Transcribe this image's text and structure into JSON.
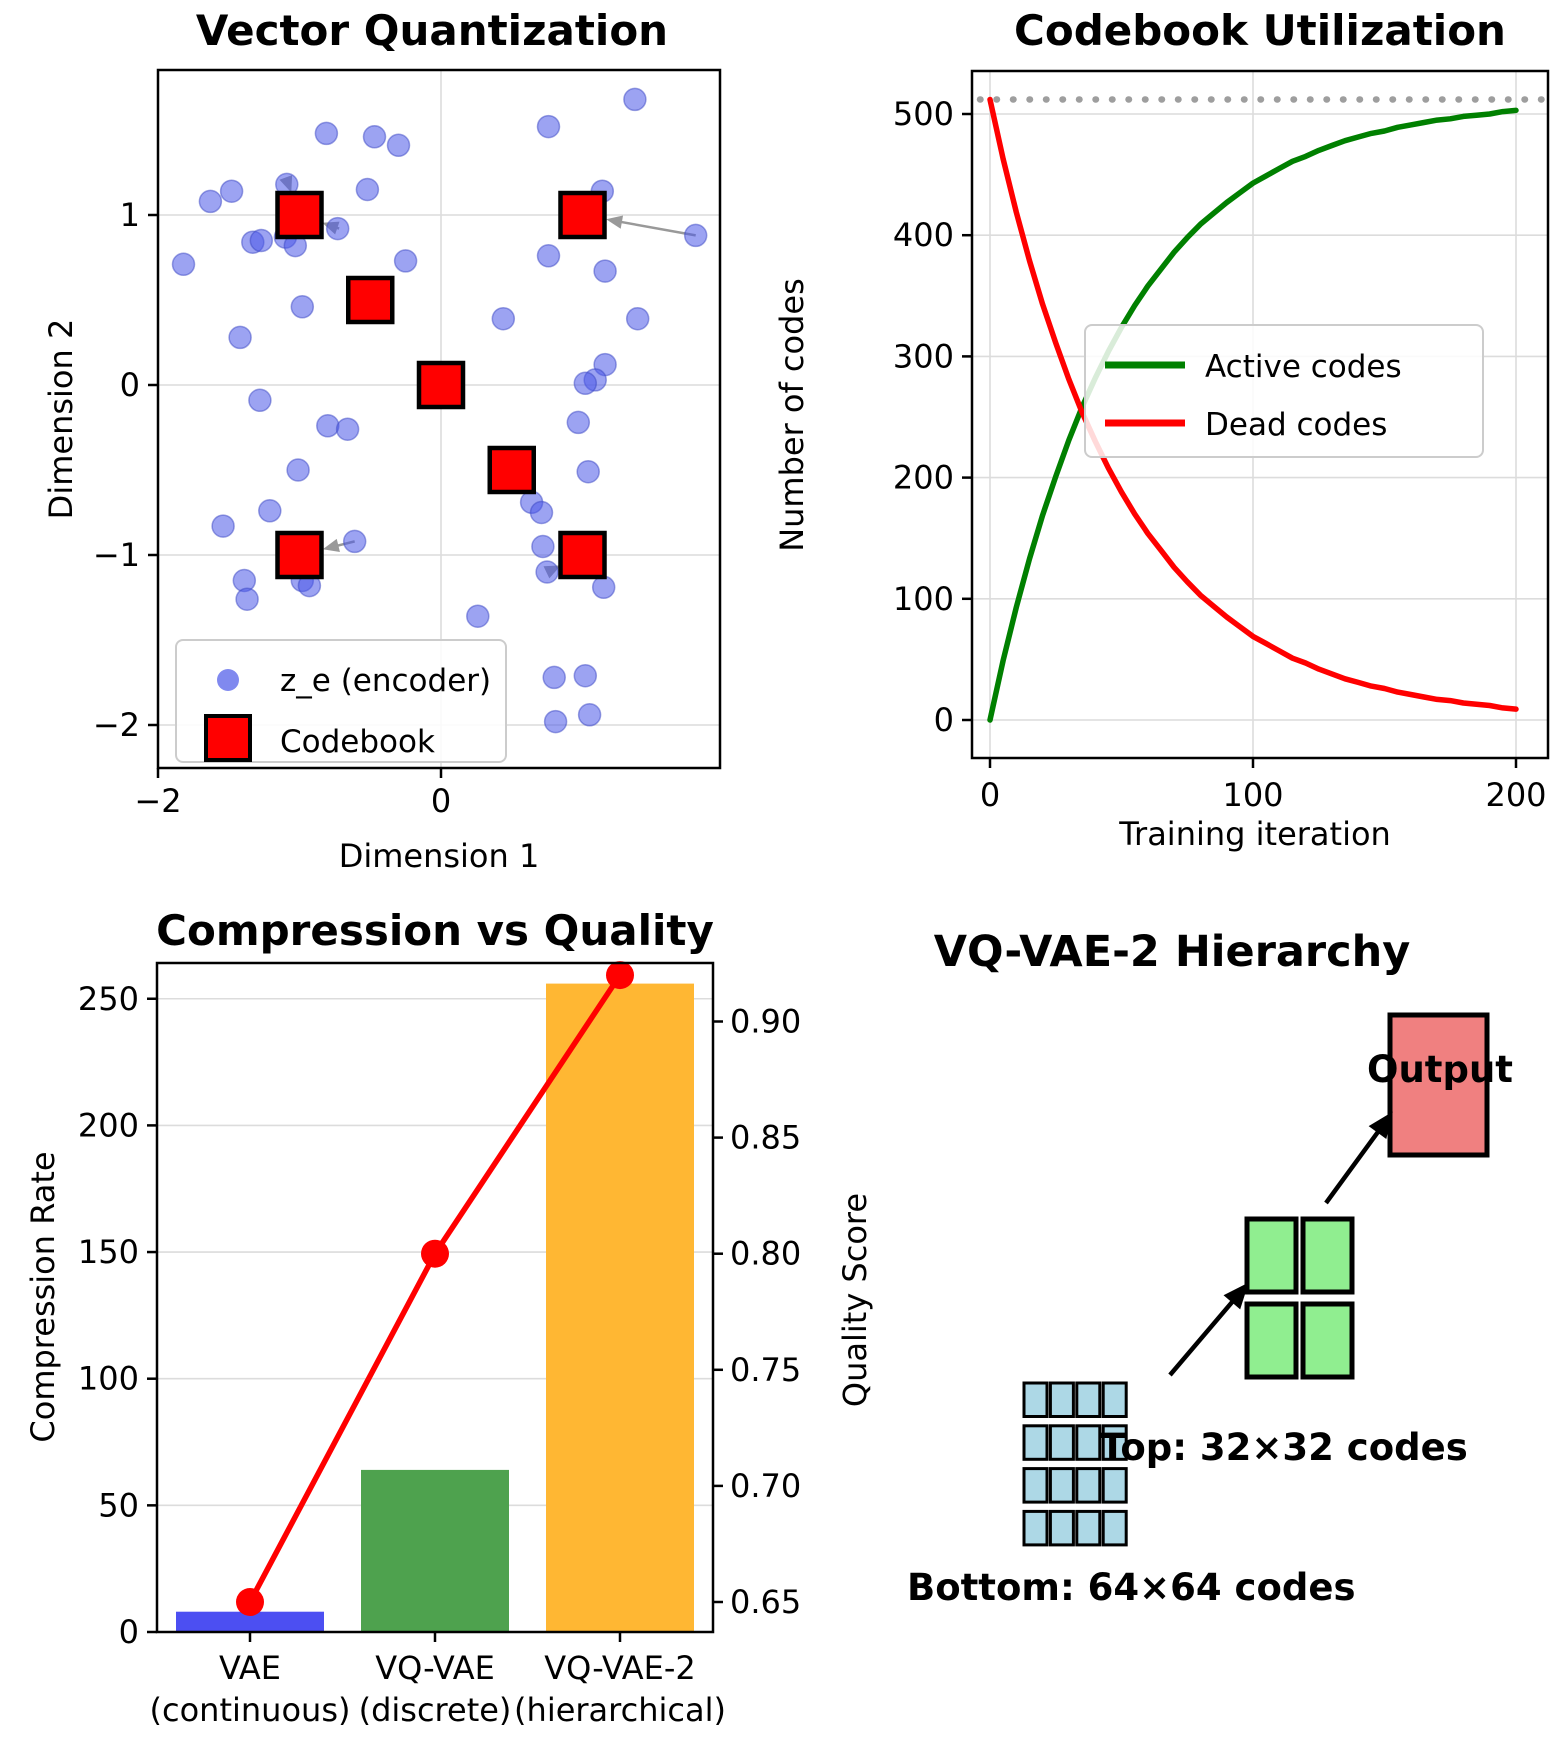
{
  "chart_data": [
    {
      "id": "vector_quantization",
      "type": "scatter",
      "title": "Vector Quantization",
      "xlabel": "Dimension 1",
      "ylabel": "Dimension 2",
      "xticks": [
        -2,
        0
      ],
      "yticks": [
        -2,
        -1,
        0,
        1
      ],
      "xlim": [
        -2.05,
        1.97
      ],
      "ylim": [
        -2.25,
        1.85
      ],
      "grid": true,
      "legend": {
        "position": "lower left",
        "entries": [
          {
            "label": "z_e (encoder)",
            "marker": "circle"
          },
          {
            "label": "Codebook",
            "marker": "square"
          }
        ]
      },
      "encoder_points": [
        [
          -1.63,
          1.08
        ],
        [
          -1.48,
          1.14
        ],
        [
          -1.09,
          1.18
        ],
        [
          -0.52,
          1.15
        ],
        [
          1.14,
          1.14
        ],
        [
          -0.81,
          1.48
        ],
        [
          -0.47,
          1.46
        ],
        [
          -0.3,
          1.41
        ],
        [
          0.76,
          1.52
        ],
        [
          1.37,
          1.68
        ],
        [
          -1.82,
          0.71
        ],
        [
          -1.33,
          0.84
        ],
        [
          -1.27,
          0.85
        ],
        [
          -1.1,
          0.87
        ],
        [
          -1.03,
          0.82
        ],
        [
          -0.73,
          0.92
        ],
        [
          -0.25,
          0.73
        ],
        [
          1.16,
          0.67
        ],
        [
          0.76,
          0.76
        ],
        [
          1.8,
          0.88
        ],
        [
          -0.98,
          0.46
        ],
        [
          -1.42,
          0.28
        ],
        [
          0.44,
          0.39
        ],
        [
          1.39,
          0.39
        ],
        [
          1.16,
          0.12
        ],
        [
          1.09,
          0.03
        ],
        [
          1.02,
          0.01
        ],
        [
          -1.28,
          -0.09
        ],
        [
          -0.8,
          -0.24
        ],
        [
          -0.66,
          -0.26
        ],
        [
          0.97,
          -0.22
        ],
        [
          -1.01,
          -0.5
        ],
        [
          1.04,
          -0.51
        ],
        [
          -1.21,
          -0.74
        ],
        [
          -1.54,
          -0.83
        ],
        [
          0.64,
          -0.69
        ],
        [
          0.71,
          -0.75
        ],
        [
          -0.61,
          -0.92
        ],
        [
          0.72,
          -0.95
        ],
        [
          -1.39,
          -1.15
        ],
        [
          -1.37,
          -1.26
        ],
        [
          -0.98,
          -1.15
        ],
        [
          -0.93,
          -1.18
        ],
        [
          0.75,
          -1.1
        ],
        [
          1.15,
          -1.19
        ],
        [
          0.26,
          -1.36
        ],
        [
          0.8,
          -1.72
        ],
        [
          1.02,
          -1.71
        ],
        [
          0.81,
          -1.98
        ],
        [
          1.05,
          -1.94
        ]
      ],
      "codebook_points": [
        [
          -1,
          1
        ],
        [
          1,
          1
        ],
        [
          -0.5,
          0.5
        ],
        [
          0,
          0
        ],
        [
          0.5,
          -0.5
        ],
        [
          -1,
          -1
        ],
        [
          1,
          -1
        ]
      ],
      "assignment_arrows": [
        {
          "from": [
            -1.07,
            1.16
          ],
          "to": [
            -1,
            1
          ]
        },
        {
          "from": [
            -0.72,
            0.92
          ],
          "to": [
            -1,
            1
          ]
        },
        {
          "from": [
            1.8,
            0.88
          ],
          "to": [
            1,
            1
          ]
        },
        {
          "from": [
            -0.61,
            -0.92
          ],
          "to": [
            -1,
            -1
          ]
        },
        {
          "from": [
            0.75,
            -1.1
          ],
          "to": [
            1,
            -1
          ]
        }
      ],
      "colors": {
        "encoder": "#4a57e8",
        "codebook": "#ff0000",
        "arrow": "#999999",
        "grid": "#dcdcdc"
      }
    },
    {
      "id": "codebook_utilization",
      "type": "line",
      "title": "Codebook Utilization",
      "xlabel": "Training iteration",
      "ylabel": "Number of codes",
      "xticks": [
        0,
        100,
        200
      ],
      "yticks": [
        0,
        100,
        200,
        300,
        400,
        500
      ],
      "xlim": [
        -7,
        212
      ],
      "ylim": [
        -31,
        535
      ],
      "grid": true,
      "codebook_size_target": 512,
      "x": [
        0,
        5,
        10,
        15,
        20,
        25,
        30,
        35,
        40,
        45,
        50,
        55,
        60,
        65,
        70,
        75,
        80,
        85,
        90,
        95,
        100,
        105,
        110,
        115,
        120,
        125,
        130,
        135,
        140,
        145,
        150,
        155,
        160,
        165,
        170,
        175,
        180,
        185,
        190,
        195,
        200
      ],
      "series": [
        {
          "name": "Active codes",
          "color": "#008000",
          "values": [
            0,
            49,
            93,
            133,
            169,
            201,
            231,
            258,
            282,
            304,
            324,
            342,
            358,
            372,
            386,
            398,
            409,
            418,
            427,
            435,
            443,
            449,
            455,
            461,
            465,
            470,
            474,
            478,
            481,
            484,
            486,
            489,
            491,
            493,
            495,
            496,
            498,
            499,
            500,
            502,
            503
          ]
        },
        {
          "name": "Dead codes",
          "color": "#ff0000",
          "values": [
            512,
            463,
            419,
            379,
            343,
            311,
            281,
            254,
            230,
            208,
            188,
            170,
            154,
            140,
            126,
            114,
            103,
            94,
            85,
            77,
            69,
            63,
            57,
            51,
            47,
            42,
            38,
            34,
            31,
            28,
            26,
            23,
            21,
            19,
            17,
            16,
            14,
            13,
            12,
            10,
            9
          ]
        }
      ],
      "legend_position": "center right",
      "colors": {
        "target_line": "#9e9e9e",
        "grid": "#dcdcdc"
      }
    },
    {
      "id": "compression_vs_quality",
      "type": "bar",
      "title": "Compression vs Quality",
      "ylabel_left": "Compression Rate",
      "ylabel_right": "Quality Score",
      "categories": [
        [
          "VAE",
          "(continuous)"
        ],
        [
          "VQ-VAE",
          "(discrete)"
        ],
        [
          "VQ-VAE-2",
          "(hierarchical)"
        ]
      ],
      "compression_rate": [
        8,
        64,
        256
      ],
      "quality_score": [
        0.65,
        0.8,
        0.92
      ],
      "bar_colors": [
        "#4c4ff2",
        "#4ea24e",
        "#ffb733"
      ],
      "line_color": "#ff0000",
      "yticks_left": [
        0,
        50,
        100,
        150,
        200,
        250
      ],
      "yticks_right": [
        0.65,
        0.7,
        0.75,
        0.8,
        0.85,
        0.9
      ],
      "ylim_left": [
        0,
        264
      ],
      "ylim_right": [
        0.637,
        0.925
      ],
      "grid": true,
      "colors": {
        "grid": "#dcdcdc",
        "right_label": "#ff0000"
      }
    },
    {
      "id": "vqvae2_hierarchy",
      "type": "diagram",
      "title": "VQ-VAE-2 Hierarchy",
      "top_label": "Top: 32×32 codes",
      "bottom_label": "Bottom: 64×64 codes",
      "output_label": "Output",
      "bottom_grid": {
        "rows": 4,
        "cols": 4,
        "color": "#add8e6"
      },
      "top_grid": {
        "rows": 2,
        "cols": 2,
        "color": "#90ee90"
      },
      "output_color": "#f08080",
      "arrow_color": "#000000"
    }
  ]
}
